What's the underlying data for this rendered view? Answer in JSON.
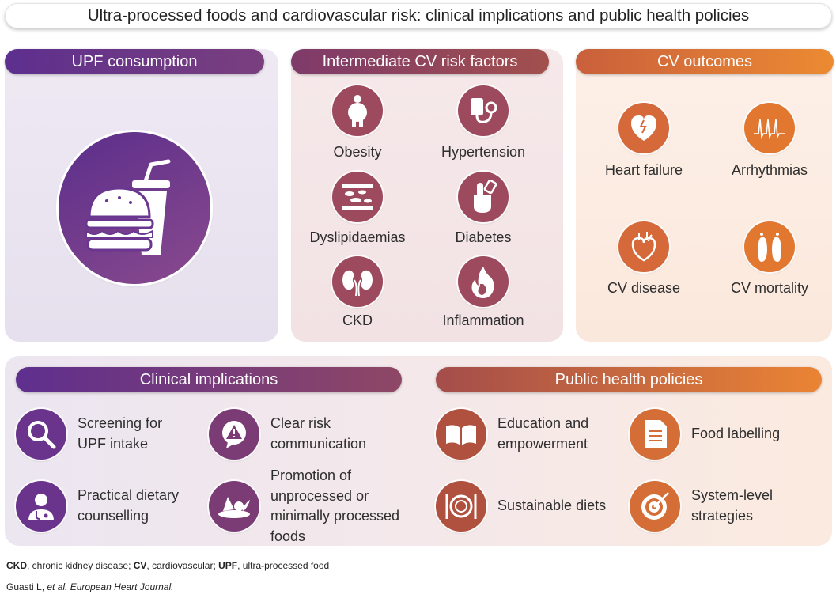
{
  "title": "Ultra-processed foods and cardiovascular risk: clinical implications and public health policies",
  "sections": {
    "upf": {
      "title": "UPF consumption"
    },
    "intermediate": {
      "title": "Intermediate CV risk factors",
      "items": [
        {
          "label": "Obesity",
          "icon": "obesity-icon"
        },
        {
          "label": "Hypertension",
          "icon": "blood-pressure-cuff-icon"
        },
        {
          "label": "Dyslipidaemias",
          "icon": "artery-plaque-icon"
        },
        {
          "label": "Diabetes",
          "icon": "glucose-finger-prick-icon"
        },
        {
          "label": "CKD",
          "icon": "kidneys-icon"
        },
        {
          "label": "Inflammation",
          "icon": "flame-icon"
        }
      ]
    },
    "outcomes": {
      "title": "CV outcomes",
      "items": [
        {
          "label": "Heart failure",
          "icon": "heart-failure-icon"
        },
        {
          "label": "Arrhythmias",
          "icon": "ecg-spikes-icon"
        },
        {
          "label": "CV disease",
          "icon": "heart-vessels-icon"
        },
        {
          "label": "CV mortality",
          "icon": "toe-tag-feet-icon"
        }
      ]
    },
    "clinical": {
      "title": "Clinical implications",
      "items": [
        {
          "lines": [
            "Screening for",
            "UPF intake"
          ],
          "icon": "magnifier-icon"
        },
        {
          "lines": [
            "Clear risk",
            "communication"
          ],
          "icon": "warning-speech-icon"
        },
        {
          "lines": [
            "Practical dietary",
            "counselling"
          ],
          "icon": "doctor-icon"
        },
        {
          "lines": [
            "Promotion of",
            "unprocessed or",
            "minimally processed",
            "foods"
          ],
          "icon": "vegetables-plate-icon"
        }
      ]
    },
    "policies": {
      "title": "Public health policies",
      "items": [
        {
          "lines": [
            "Education and",
            "empowerment"
          ],
          "icon": "open-book-icon"
        },
        {
          "lines": [
            "Food labelling"
          ],
          "icon": "label-document-icon"
        },
        {
          "lines": [
            "Sustainable diets"
          ],
          "icon": "plate-cutlery-icon"
        },
        {
          "lines": [
            "System-level",
            "strategies"
          ],
          "icon": "target-icon"
        }
      ]
    }
  },
  "footnote": {
    "abbrevs": [
      {
        "abbr": "CKD",
        "def": ", chronic kidney disease; "
      },
      {
        "abbr": "CV",
        "def": ", cardiovascular; "
      },
      {
        "abbr": "UPF",
        "def": ", ultra-processed food"
      }
    ],
    "citation_authors": "Guasti L, ",
    "citation_etal": "et al. European Heart Journal."
  },
  "colors": {
    "purple": "#5f2f8f",
    "plum": "#8b4466",
    "rust": "#a34f4b",
    "orange": "#e67e2c",
    "panel_purple": "#ebe6f1",
    "panel_rose": "#f5e6e8",
    "panel_peach": "#fcede3"
  }
}
